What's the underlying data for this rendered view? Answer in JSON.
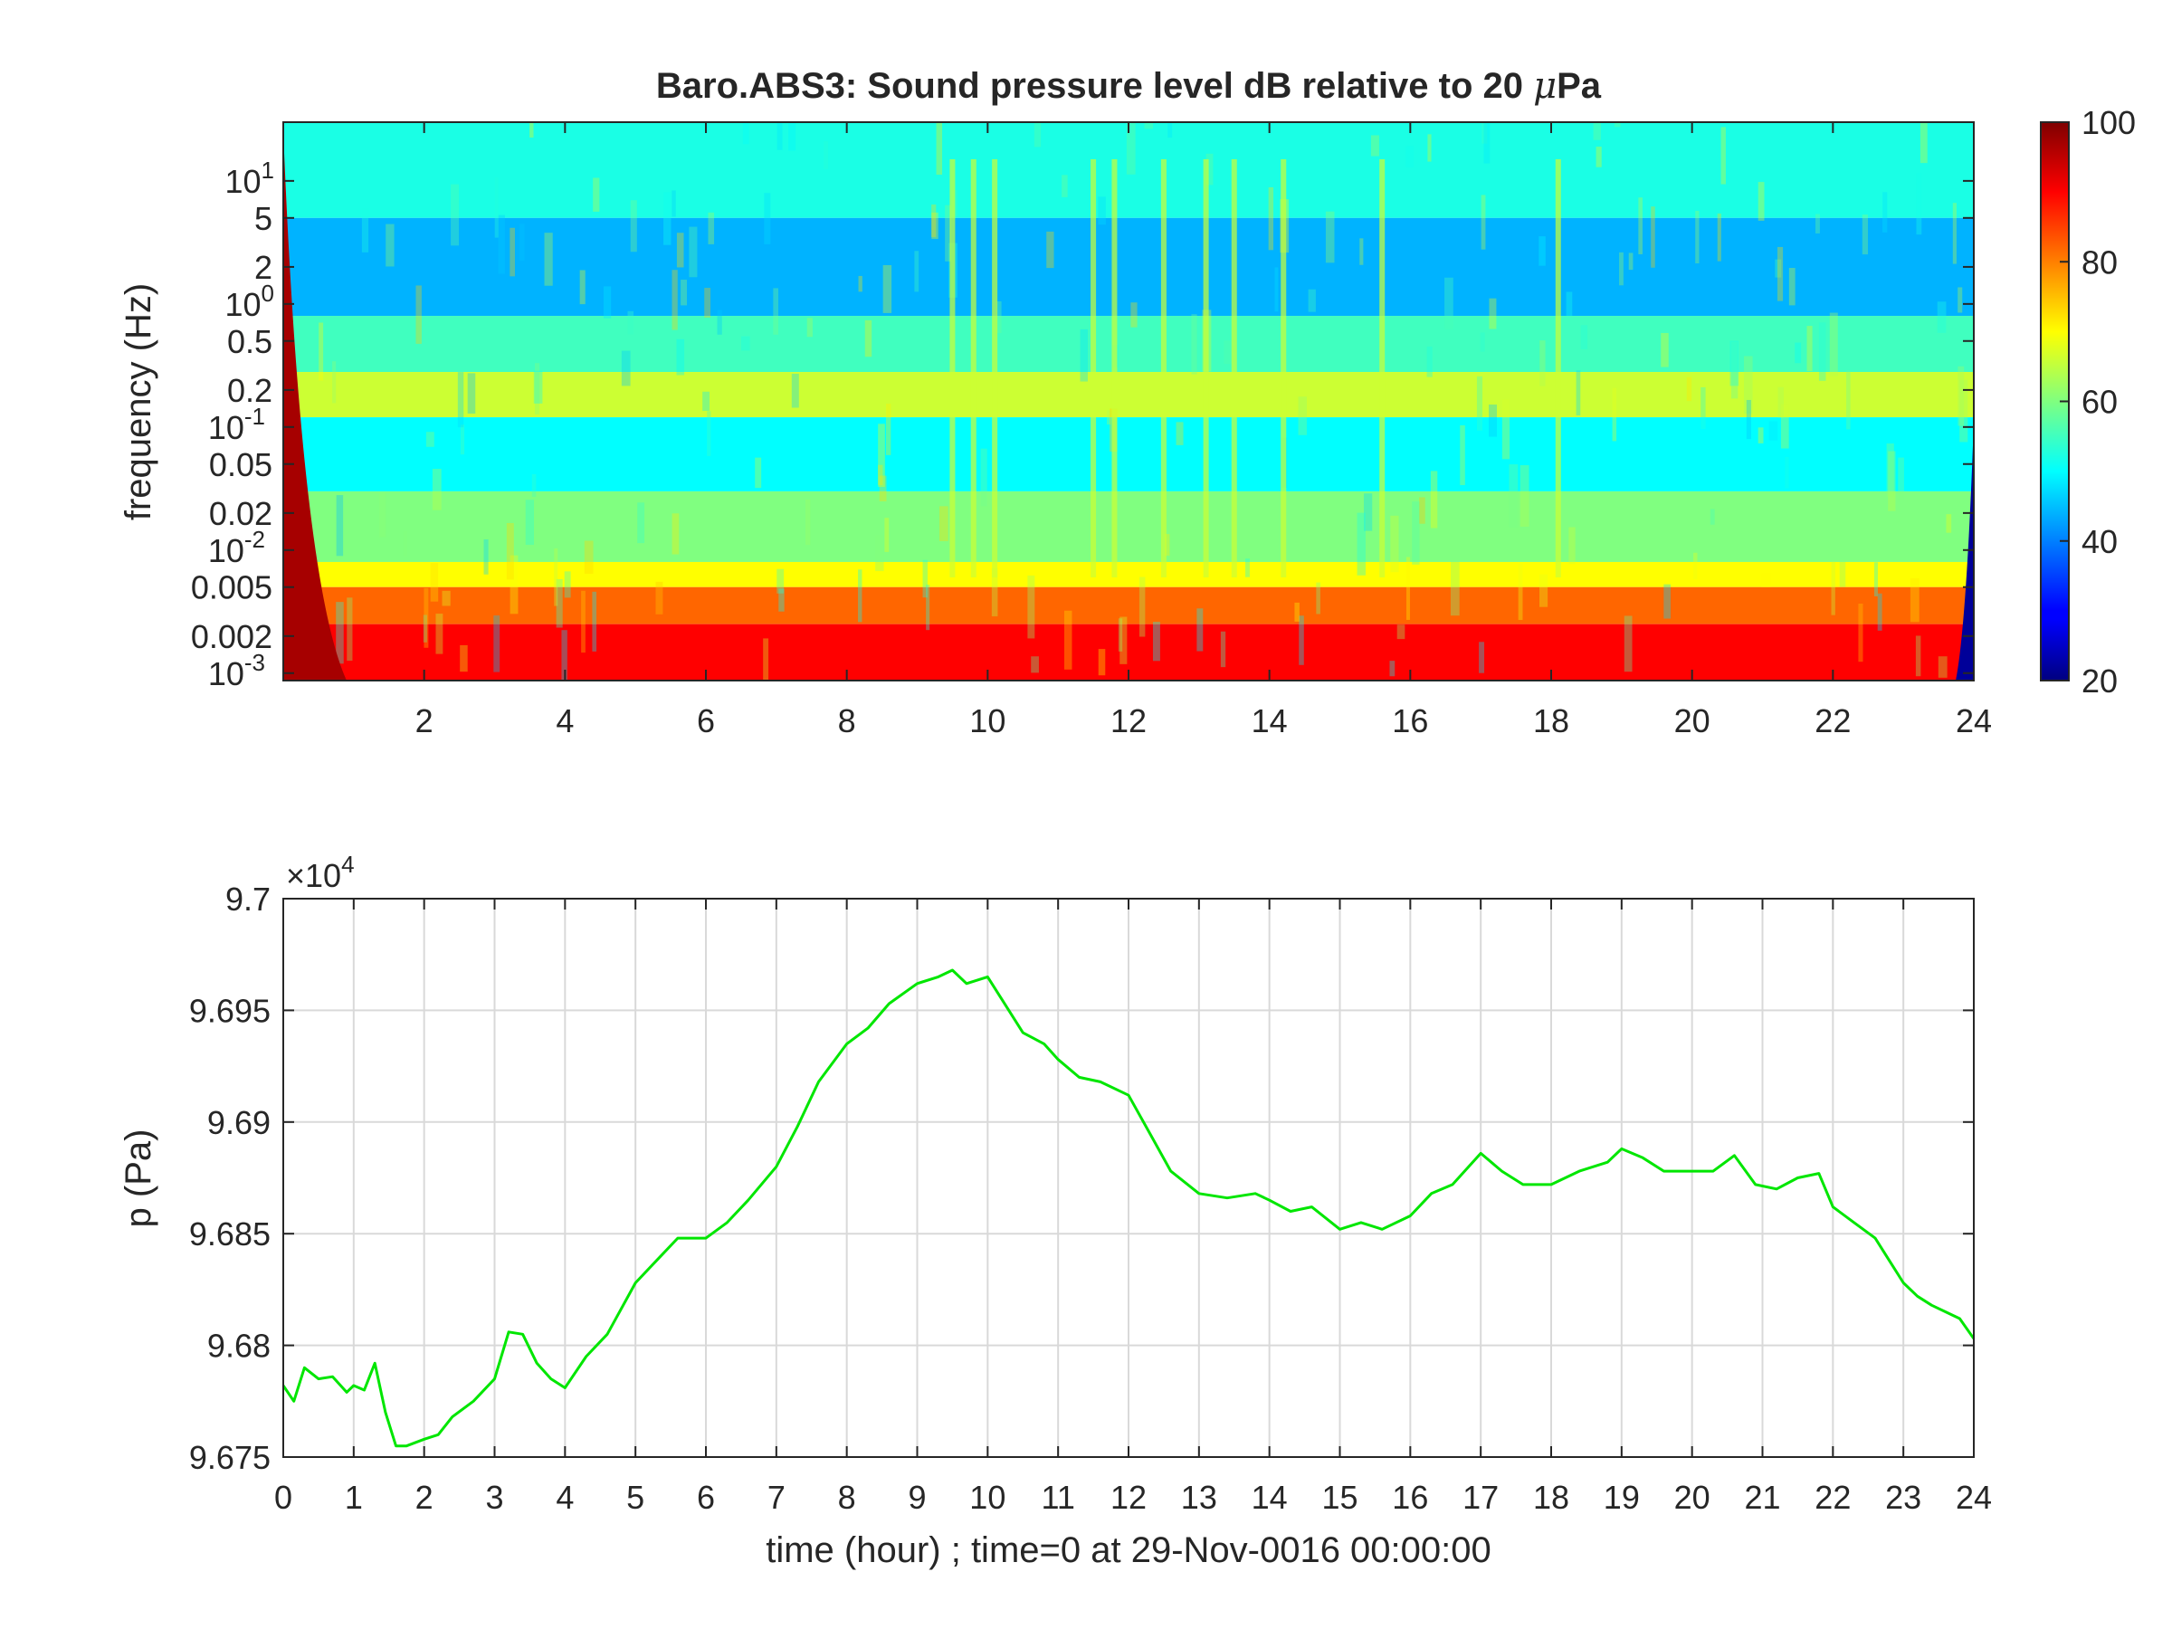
{
  "chart_data": [
    {
      "type": "heatmap",
      "title_main": "Baro.ABS3: Sound pressure level dB relative to 20 ",
      "title_mu": "μ",
      "title_end": "Pa",
      "ylabel": "frequency (Hz)",
      "xlabel": "",
      "xlim": [
        0,
        24
      ],
      "ylim": [
        0.00087,
        30
      ],
      "yscale": "log",
      "x_ticks": [
        "2",
        "4",
        "6",
        "8",
        "10",
        "12",
        "14",
        "16",
        "18",
        "20",
        "22",
        "24"
      ],
      "y_ticks": [
        {
          "base": "10",
          "exp": "1",
          "value": 10
        },
        {
          "label": "5",
          "value": 5
        },
        {
          "label": "2",
          "value": 2
        },
        {
          "base": "10",
          "exp": "0",
          "value": 1
        },
        {
          "label": "0.5",
          "value": 0.5
        },
        {
          "label": "0.2",
          "value": 0.2
        },
        {
          "base": "10",
          "exp": "-1",
          "value": 0.1
        },
        {
          "label": "0.05",
          "value": 0.05
        },
        {
          "label": "0.02",
          "value": 0.02
        },
        {
          "base": "10",
          "exp": "-2",
          "value": 0.01
        },
        {
          "label": "0.005",
          "value": 0.005
        },
        {
          "label": "0.002",
          "value": 0.002
        },
        {
          "base": "10",
          "exp": "-3",
          "value": 0.001
        }
      ],
      "colormap": "jet",
      "clim": [
        20,
        100
      ],
      "colorbar_ticks": [
        "100",
        "80",
        "60",
        "40",
        "20"
      ],
      "level_bands": [
        {
          "f_min": 5,
          "f_max": 30,
          "db": 52
        },
        {
          "f_min": 0.8,
          "f_max": 5,
          "db": 44
        },
        {
          "f_min": 0.28,
          "f_max": 0.8,
          "db": 55
        },
        {
          "f_min": 0.12,
          "f_max": 0.28,
          "db": 66
        },
        {
          "f_min": 0.03,
          "f_max": 0.12,
          "db": 50
        },
        {
          "f_min": 0.008,
          "f_max": 0.03,
          "db": 60
        },
        {
          "f_min": 0.005,
          "f_max": 0.008,
          "db": 70
        },
        {
          "f_min": 0.0025,
          "f_max": 0.005,
          "db": 82
        },
        {
          "f_min": 0.00087,
          "f_max": 0.0025,
          "db": 90
        }
      ],
      "event_lines_hour": [
        9.5,
        9.8,
        10.1,
        11.5,
        11.8,
        12.5,
        13.1,
        13.5,
        14.2,
        15.6,
        18.1
      ]
    },
    {
      "type": "line",
      "title": "",
      "ylabel": "p (Pa)",
      "xlabel": "time (hour) ; time=0 at 29-Nov-0016 00:00:00",
      "xlim": [
        0,
        24
      ],
      "ylim": [
        9.675,
        9.7
      ],
      "y_multiplier_base": "×10",
      "y_multiplier_exp": "4",
      "x_ticks": [
        "0",
        "1",
        "2",
        "3",
        "4",
        "5",
        "6",
        "7",
        "8",
        "9",
        "10",
        "11",
        "12",
        "13",
        "14",
        "15",
        "16",
        "17",
        "18",
        "19",
        "20",
        "21",
        "22",
        "23",
        "24"
      ],
      "y_ticks": [
        "9.7",
        "9.695",
        "9.69",
        "9.685",
        "9.68",
        "9.675"
      ],
      "grid": true,
      "line_color": "#00e600",
      "series": [
        {
          "x": [
            0,
            0.15,
            0.3,
            0.5,
            0.7,
            0.9,
            1.0,
            1.15,
            1.3,
            1.45,
            1.6,
            1.75,
            2.0,
            2.2,
            2.4,
            2.7,
            3.0,
            3.2,
            3.4,
            3.6,
            3.8,
            4.0,
            4.3,
            4.6,
            5.0,
            5.3,
            5.6,
            6.0,
            6.3,
            6.6,
            7.0,
            7.3,
            7.6,
            8.0,
            8.3,
            8.6,
            9.0,
            9.3,
            9.5,
            9.7,
            10.0,
            10.2,
            10.5,
            10.8,
            11.0,
            11.3,
            11.6,
            12.0,
            12.3,
            12.6,
            13.0,
            13.4,
            13.8,
            14.0,
            14.3,
            14.6,
            15.0,
            15.3,
            15.6,
            16.0,
            16.3,
            16.6,
            17.0,
            17.3,
            17.6,
            18.0,
            18.4,
            18.8,
            19.0,
            19.3,
            19.6,
            20.0,
            20.3,
            20.6,
            20.9,
            21.2,
            21.5,
            21.8,
            22.0,
            22.3,
            22.6,
            22.8,
            23.0,
            23.2,
            23.4,
            23.6,
            23.8,
            24.0
          ],
          "y": [
            9.6782,
            9.6775,
            9.679,
            9.6785,
            9.6786,
            9.6779,
            9.6782,
            9.678,
            9.6792,
            9.677,
            9.6755,
            9.6755,
            9.6758,
            9.676,
            9.6768,
            9.6775,
            9.6785,
            9.6806,
            9.6805,
            9.6792,
            9.6785,
            9.6781,
            9.6795,
            9.6805,
            9.6828,
            9.6838,
            9.6848,
            9.6848,
            9.6855,
            9.6865,
            9.688,
            9.6898,
            9.6918,
            9.6935,
            9.6942,
            9.6953,
            9.6962,
            9.6965,
            9.6968,
            9.6962,
            9.6965,
            9.6955,
            9.694,
            9.6935,
            9.6928,
            9.692,
            9.6918,
            9.6912,
            9.6895,
            9.6878,
            9.6868,
            9.6866,
            9.6868,
            9.6865,
            9.686,
            9.6862,
            9.6852,
            9.6855,
            9.6852,
            9.6858,
            9.6868,
            9.6872,
            9.6886,
            9.6878,
            9.6872,
            9.6872,
            9.6878,
            9.6882,
            9.6888,
            9.6884,
            9.6878,
            9.6878,
            9.6878,
            9.6885,
            9.6872,
            9.687,
            9.6875,
            9.6877,
            9.6862,
            9.6855,
            9.6848,
            9.6838,
            9.6828,
            9.6822,
            9.6818,
            9.6815,
            9.6812,
            9.6803
          ]
        }
      ]
    }
  ]
}
